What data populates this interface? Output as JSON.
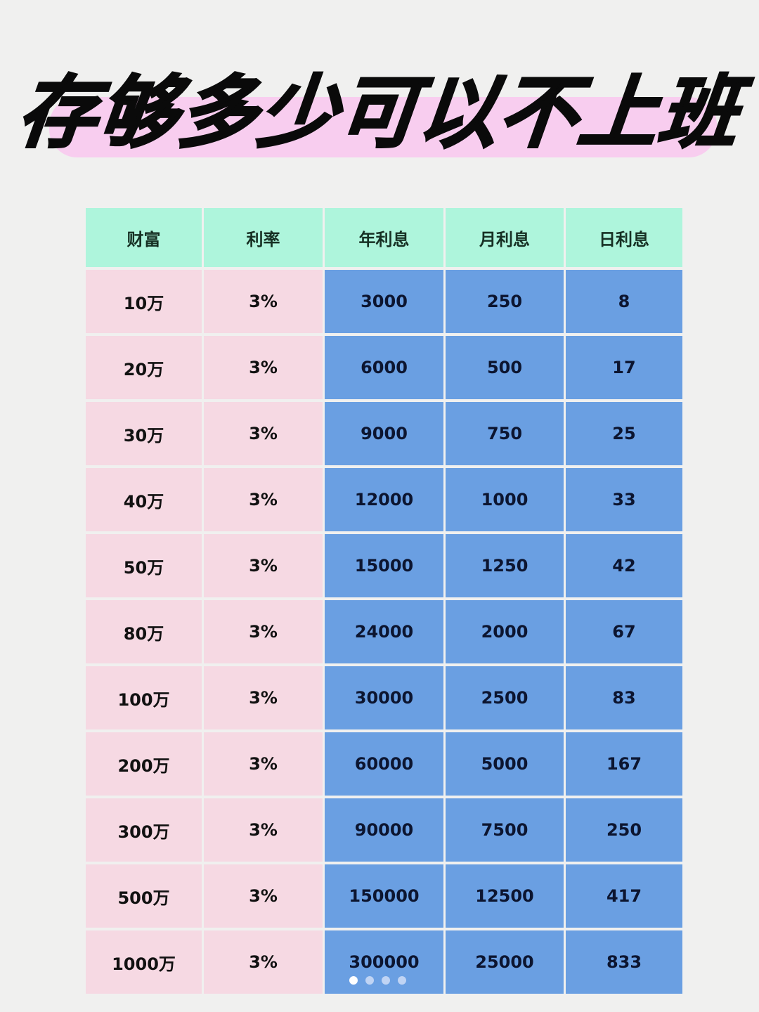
{
  "title": "存够多少可以不上班",
  "colors": {
    "header": "#aef5dc",
    "wealth_cols": "#f6d9e3",
    "interest_cols": "#6a9fe2",
    "title_highlight": "#f8cdef"
  },
  "table": {
    "headers": [
      "财富",
      "利率",
      "年利息",
      "月利息",
      "日利息"
    ],
    "rows": [
      [
        "10万",
        "3%",
        "3000",
        "250",
        "8"
      ],
      [
        "20万",
        "3%",
        "6000",
        "500",
        "17"
      ],
      [
        "30万",
        "3%",
        "9000",
        "750",
        "25"
      ],
      [
        "40万",
        "3%",
        "12000",
        "1000",
        "33"
      ],
      [
        "50万",
        "3%",
        "15000",
        "1250",
        "42"
      ],
      [
        "80万",
        "3%",
        "24000",
        "2000",
        "67"
      ],
      [
        "100万",
        "3%",
        "30000",
        "2500",
        "83"
      ],
      [
        "200万",
        "3%",
        "60000",
        "5000",
        "167"
      ],
      [
        "300万",
        "3%",
        "90000",
        "7500",
        "250"
      ],
      [
        "500万",
        "3%",
        "150000",
        "12500",
        "417"
      ],
      [
        "1000万",
        "3%",
        "300000",
        "25000",
        "833"
      ]
    ]
  },
  "carousel": {
    "pages": 4,
    "current": 1
  }
}
